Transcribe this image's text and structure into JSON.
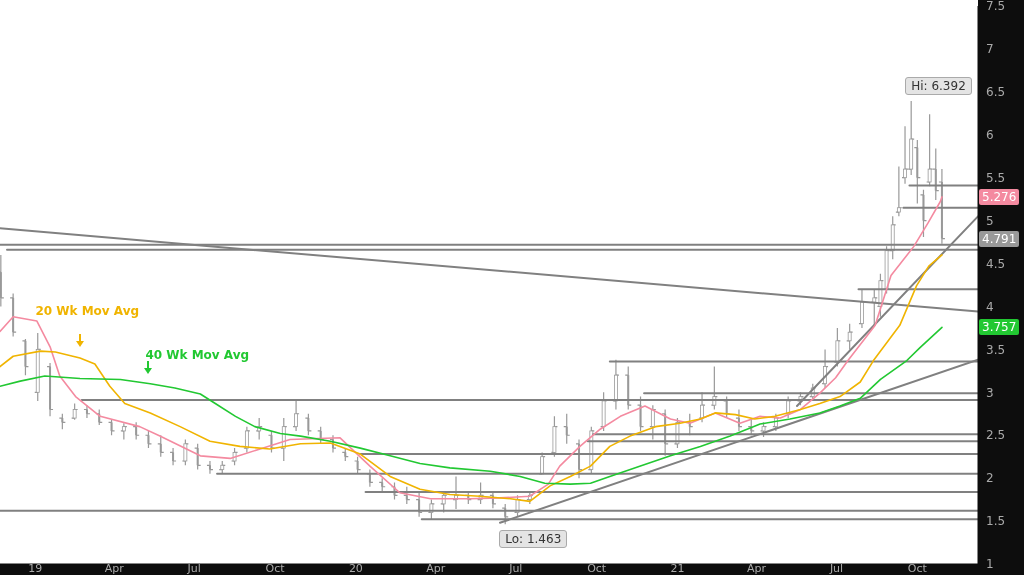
{
  "chart_data": {
    "type": "candlestick",
    "color": "#999999",
    "x": [
      "2018-11-23",
      "2018-12-07",
      "2018-12-21",
      "2019-01-04",
      "2019-01-18",
      "2019-02-01",
      "2019-02-15",
      "2019-03-01",
      "2019-03-15",
      "2019-03-29",
      "2019-04-12",
      "2019-04-26",
      "2019-05-10",
      "2019-05-24",
      "2019-06-07",
      "2019-06-21",
      "2019-07-05",
      "2019-07-19",
      "2019-08-02",
      "2019-08-16",
      "2019-08-30",
      "2019-09-13",
      "2019-09-27",
      "2019-10-11",
      "2019-10-25",
      "2019-11-08",
      "2019-11-22",
      "2019-12-06",
      "2019-12-20",
      "2020-01-03",
      "2020-01-17",
      "2020-01-31",
      "2020-02-14",
      "2020-02-28",
      "2020-03-13",
      "2020-03-27",
      "2020-04-10",
      "2020-04-24",
      "2020-05-08",
      "2020-05-22",
      "2020-06-05",
      "2020-06-19",
      "2020-07-03",
      "2020-07-17",
      "2020-07-31",
      "2020-08-14",
      "2020-08-28",
      "2020-09-11",
      "2020-09-25",
      "2020-10-09",
      "2020-10-23",
      "2020-11-06",
      "2020-11-20",
      "2020-12-04",
      "2020-12-18",
      "2021-01-01",
      "2021-01-15",
      "2021-01-29",
      "2021-02-12",
      "2021-02-26",
      "2021-03-12",
      "2021-03-26",
      "2021-04-09",
      "2021-04-23",
      "2021-05-07",
      "2021-05-21",
      "2021-06-04",
      "2021-06-18",
      "2021-07-02",
      "2021-07-16",
      "2021-07-30",
      "2021-08-13",
      "2021-08-20",
      "2021-08-27",
      "2021-09-03",
      "2021-09-10",
      "2021-09-17",
      "2021-09-24",
      "2021-10-01",
      "2021-10-08",
      "2021-10-15",
      "2021-10-22",
      "2021-10-29"
    ],
    "ohlc": [
      [
        4.4,
        4.6,
        4.0,
        4.1
      ],
      [
        4.1,
        4.15,
        3.65,
        3.7
      ],
      [
        3.6,
        3.62,
        3.2,
        3.3
      ],
      [
        3.0,
        3.69,
        2.9,
        3.5
      ],
      [
        3.3,
        3.34,
        2.72,
        2.8
      ],
      [
        2.7,
        2.75,
        2.57,
        2.65
      ],
      [
        2.7,
        2.87,
        2.68,
        2.8
      ],
      [
        2.8,
        2.85,
        2.7,
        2.75
      ],
      [
        2.75,
        2.8,
        2.62,
        2.65
      ],
      [
        2.65,
        2.68,
        2.5,
        2.55
      ],
      [
        2.55,
        2.64,
        2.45,
        2.6
      ],
      [
        2.6,
        2.65,
        2.45,
        2.5
      ],
      [
        2.5,
        2.55,
        2.35,
        2.4
      ],
      [
        2.4,
        2.5,
        2.25,
        2.3
      ],
      [
        2.3,
        2.35,
        2.15,
        2.2
      ],
      [
        2.2,
        2.45,
        2.15,
        2.4
      ],
      [
        2.35,
        2.4,
        2.1,
        2.15
      ],
      [
        2.15,
        2.2,
        2.05,
        2.1
      ],
      [
        2.1,
        2.2,
        2.05,
        2.15
      ],
      [
        2.2,
        2.35,
        2.15,
        2.3
      ],
      [
        2.35,
        2.6,
        2.3,
        2.55
      ],
      [
        2.55,
        2.7,
        2.45,
        2.6
      ],
      [
        2.5,
        2.55,
        2.3,
        2.35
      ],
      [
        2.35,
        2.7,
        2.2,
        2.6
      ],
      [
        2.6,
        2.9,
        2.55,
        2.75
      ],
      [
        2.7,
        2.75,
        2.5,
        2.55
      ],
      [
        2.55,
        2.6,
        2.4,
        2.45
      ],
      [
        2.45,
        2.5,
        2.3,
        2.35
      ],
      [
        2.3,
        2.35,
        2.2,
        2.25
      ],
      [
        2.2,
        2.25,
        2.05,
        2.1
      ],
      [
        2.05,
        2.1,
        1.9,
        1.95
      ],
      [
        1.95,
        2.0,
        1.85,
        1.9
      ],
      [
        1.9,
        1.95,
        1.75,
        1.8
      ],
      [
        1.8,
        1.9,
        1.7,
        1.75
      ],
      [
        1.75,
        1.85,
        1.55,
        1.6
      ],
      [
        1.6,
        1.75,
        1.52,
        1.7
      ],
      [
        1.7,
        1.85,
        1.6,
        1.8
      ],
      [
        1.75,
        2.02,
        1.64,
        1.8
      ],
      [
        1.8,
        1.85,
        1.7,
        1.75
      ],
      [
        1.75,
        1.95,
        1.7,
        1.8
      ],
      [
        1.8,
        1.85,
        1.65,
        1.7
      ],
      [
        1.65,
        1.7,
        1.463,
        1.55
      ],
      [
        1.6,
        1.8,
        1.55,
        1.75
      ],
      [
        1.75,
        1.85,
        1.7,
        1.8
      ],
      [
        2.05,
        2.3,
        2.05,
        2.25
      ],
      [
        2.3,
        2.72,
        2.25,
        2.6
      ],
      [
        2.6,
        2.75,
        2.4,
        2.5
      ],
      [
        2.4,
        2.45,
        2.0,
        2.1
      ],
      [
        2.1,
        2.6,
        2.05,
        2.55
      ],
      [
        2.6,
        3.0,
        2.55,
        2.9
      ],
      [
        2.9,
        3.38,
        2.8,
        3.2
      ],
      [
        3.2,
        3.3,
        2.8,
        2.85
      ],
      [
        2.85,
        2.95,
        2.55,
        2.6
      ],
      [
        2.6,
        2.85,
        2.45,
        2.8
      ],
      [
        2.75,
        2.8,
        2.26,
        2.4
      ],
      [
        2.4,
        2.7,
        2.35,
        2.65
      ],
      [
        2.65,
        2.75,
        2.5,
        2.6
      ],
      [
        2.7,
        3.0,
        2.65,
        2.85
      ],
      [
        2.85,
        3.3,
        2.8,
        2.95
      ],
      [
        2.9,
        2.95,
        2.7,
        2.75
      ],
      [
        2.7,
        2.8,
        2.55,
        2.6
      ],
      [
        2.6,
        2.7,
        2.5,
        2.55
      ],
      [
        2.55,
        2.65,
        2.48,
        2.6
      ],
      [
        2.6,
        2.75,
        2.55,
        2.7
      ],
      [
        2.75,
        2.95,
        2.7,
        2.9
      ],
      [
        2.9,
        3.0,
        2.85,
        2.95
      ],
      [
        2.95,
        3.1,
        2.9,
        3.05
      ],
      [
        3.1,
        3.5,
        3.05,
        3.3
      ],
      [
        3.35,
        3.75,
        3.3,
        3.6
      ],
      [
        3.6,
        3.8,
        3.5,
        3.7
      ],
      [
        3.8,
        4.2,
        3.75,
        4.05
      ],
      [
        4.05,
        4.2,
        3.77,
        4.1
      ],
      [
        4.0,
        4.38,
        3.88,
        4.3
      ],
      [
        4.2,
        4.7,
        4.15,
        4.65
      ],
      [
        4.65,
        5.05,
        4.55,
        4.95
      ],
      [
        5.1,
        5.63,
        5.05,
        5.15
      ],
      [
        5.5,
        6.1,
        5.43,
        5.6
      ],
      [
        5.6,
        6.392,
        5.53,
        5.95
      ],
      [
        5.85,
        5.94,
        5.2,
        5.5
      ],
      [
        5.3,
        5.36,
        4.81,
        5.0
      ],
      [
        5.45,
        6.24,
        5.4,
        5.6
      ],
      [
        5.6,
        5.84,
        5.24,
        5.35
      ],
      [
        5.45,
        5.6,
        4.73,
        4.791
      ]
    ],
    "series": [
      {
        "type": "line",
        "color": "#f48aa0",
        "x": [
          "2018-11-22",
          "2018-12-07",
          "2019-01-03",
          "2019-01-18",
          "2019-01-29",
          "2019-02-16",
          "2019-03-16",
          "2019-04-30",
          "2019-05-23",
          "2019-07-08",
          "2019-08-11",
          "2019-09-14",
          "2019-10-18",
          "2019-12-14",
          "2020-01-17",
          "2020-02-20",
          "2020-03-26",
          "2020-05-10",
          "2020-06-13",
          "2020-07-17",
          "2020-08-07",
          "2020-08-20",
          "2020-09-12",
          "2020-10-05",
          "2020-10-28",
          "2020-11-25",
          "2020-12-24",
          "2021-01-15",
          "2021-02-13",
          "2021-03-13",
          "2021-04-05",
          "2021-04-28",
          "2021-05-21",
          "2021-06-12",
          "2021-06-30",
          "2021-07-14",
          "2021-08-14",
          "2021-09-01",
          "2021-09-27",
          "2021-10-13",
          "2021-10-27",
          "2021-10-29"
        ],
        "values": [
          3.71,
          3.88,
          3.83,
          3.53,
          3.19,
          2.95,
          2.72,
          2.6,
          2.49,
          2.26,
          2.23,
          2.34,
          2.45,
          2.47,
          2.14,
          1.83,
          1.76,
          1.76,
          1.77,
          1.79,
          1.93,
          2.14,
          2.37,
          2.57,
          2.72,
          2.84,
          2.69,
          2.64,
          2.76,
          2.64,
          2.72,
          2.7,
          2.8,
          2.99,
          3.17,
          3.37,
          3.78,
          4.36,
          4.7,
          4.97,
          5.22,
          5.276
        ]
      },
      {
        "type": "line",
        "name": "20 Wk Mov Avg",
        "color": "#f0b400",
        "x": [
          "2018-11-22",
          "2018-12-07",
          "2019-01-07",
          "2019-01-24",
          "2019-02-21",
          "2019-03-10",
          "2019-03-27",
          "2019-04-13",
          "2019-05-12",
          "2019-06-15",
          "2019-07-19",
          "2019-08-22",
          "2019-09-25",
          "2019-10-30",
          "2019-12-03",
          "2020-01-06",
          "2020-02-09",
          "2020-03-14",
          "2020-04-17",
          "2020-05-21",
          "2020-06-25",
          "2020-07-17",
          "2020-08-09",
          "2020-09-01",
          "2020-09-24",
          "2020-10-16",
          "2020-11-08",
          "2020-12-07",
          "2021-01-04",
          "2021-01-27",
          "2021-02-13",
          "2021-03-08",
          "2021-03-30",
          "2021-04-22",
          "2021-05-21",
          "2021-06-12",
          "2021-07-05",
          "2021-07-28",
          "2021-08-12",
          "2021-09-11",
          "2021-09-30",
          "2021-10-14",
          "2021-10-29"
        ],
        "values": [
          3.3,
          3.42,
          3.48,
          3.47,
          3.4,
          3.33,
          3.07,
          2.87,
          2.76,
          2.6,
          2.43,
          2.37,
          2.34,
          2.4,
          2.41,
          2.28,
          2.02,
          1.87,
          1.81,
          1.79,
          1.76,
          1.73,
          1.91,
          2.02,
          2.14,
          2.37,
          2.49,
          2.6,
          2.64,
          2.69,
          2.76,
          2.74,
          2.69,
          2.72,
          2.8,
          2.87,
          2.95,
          3.12,
          3.37,
          3.78,
          4.24,
          4.47,
          4.6
        ]
      },
      {
        "type": "line",
        "name": "40 Wk Mov Avg",
        "color": "#22c832",
        "x": [
          "2018-11-22",
          "2018-12-15",
          "2019-01-12",
          "2019-02-21",
          "2019-04-08",
          "2019-05-12",
          "2019-06-09",
          "2019-07-08",
          "2019-07-25",
          "2019-08-17",
          "2019-09-08",
          "2019-10-07",
          "2019-10-30",
          "2019-12-03",
          "2020-01-06",
          "2020-02-09",
          "2020-03-14",
          "2020-04-17",
          "2020-06-02",
          "2020-07-06",
          "2020-08-03",
          "2020-09-01",
          "2020-09-24",
          "2020-10-16",
          "2020-11-19",
          "2020-12-24",
          "2021-01-27",
          "2021-03-02",
          "2021-04-05",
          "2021-05-09",
          "2021-06-12",
          "2021-07-05",
          "2021-07-28",
          "2021-08-20",
          "2021-09-19",
          "2021-10-04",
          "2021-10-29"
        ],
        "values": [
          3.07,
          3.13,
          3.19,
          3.16,
          3.15,
          3.1,
          3.05,
          2.98,
          2.87,
          2.72,
          2.6,
          2.52,
          2.49,
          2.43,
          2.35,
          2.26,
          2.17,
          2.12,
          2.08,
          2.02,
          1.94,
          1.93,
          1.94,
          2.02,
          2.14,
          2.26,
          2.37,
          2.49,
          2.63,
          2.69,
          2.76,
          2.84,
          2.93,
          3.15,
          3.37,
          3.52,
          3.757
        ]
      },
      {
        "type": "line",
        "color": "#808080",
        "x": [
          "2018-11-22",
          "2021-12-09"
        ],
        "values": [
          4.91,
          3.94
        ]
      },
      {
        "type": "line",
        "color": "#808080",
        "x": [
          "2018-11-22",
          "2021-12-09"
        ],
        "values": [
          4.72,
          4.72
        ]
      },
      {
        "type": "line",
        "color": "#808080",
        "x": [
          "2018-11-30",
          "2021-12-09"
        ],
        "values": [
          4.66,
          4.66
        ]
      },
      {
        "type": "line",
        "color": "#808080",
        "x": [
          "2021-07-26",
          "2021-12-09"
        ],
        "values": [
          4.2,
          4.2
        ]
      },
      {
        "type": "line",
        "color": "#808080",
        "x": [
          "2021-09-22",
          "2021-12-09"
        ],
        "values": [
          5.41,
          5.41
        ]
      },
      {
        "type": "line",
        "color": "#808080",
        "x": [
          "2021-09-15",
          "2021-12-09"
        ],
        "values": [
          5.15,
          5.15
        ]
      },
      {
        "type": "line",
        "color": "#808080",
        "x": [
          "2020-10-16",
          "2021-12-09"
        ],
        "values": [
          3.36,
          3.36
        ]
      },
      {
        "type": "line",
        "color": "#808080",
        "x": [
          "2020-11-24",
          "2021-12-09"
        ],
        "values": [
          2.99,
          2.99
        ]
      },
      {
        "type": "line",
        "color": "#808080",
        "x": [
          "2019-02-23",
          "2021-12-09"
        ],
        "values": [
          2.91,
          2.91
        ]
      },
      {
        "type": "line",
        "color": "#808080",
        "x": [
          "2020-09-27",
          "2021-12-09"
        ],
        "values": [
          2.51,
          2.51
        ]
      },
      {
        "type": "line",
        "color": "#808080",
        "x": [
          "2020-09-21",
          "2021-12-09"
        ],
        "values": [
          2.43,
          2.43
        ]
      },
      {
        "type": "line",
        "color": "#808080",
        "x": [
          "2020-01-06",
          "2021-12-09"
        ],
        "values": [
          2.28,
          2.28
        ]
      },
      {
        "type": "line",
        "color": "#808080",
        "x": [
          "2019-07-27",
          "2021-12-09"
        ],
        "values": [
          2.05,
          2.05
        ]
      },
      {
        "type": "line",
        "color": "#808080",
        "x": [
          "2020-01-12",
          "2021-12-09"
        ],
        "values": [
          1.84,
          1.84
        ]
      },
      {
        "type": "line",
        "color": "#808080",
        "x": [
          "2018-11-22",
          "2021-12-09"
        ],
        "values": [
          1.62,
          1.62
        ]
      },
      {
        "type": "line",
        "color": "#808080",
        "x": [
          "2020-03-16",
          "2021-12-09"
        ],
        "values": [
          1.52,
          1.52
        ]
      },
      {
        "type": "line",
        "color": "#808080",
        "x": [
          "2020-06-13",
          "2021-12-09"
        ],
        "values": [
          1.48,
          3.38
        ]
      },
      {
        "type": "line",
        "color": "#808080",
        "x": [
          "2021-05-17",
          "2021-12-09"
        ],
        "values": [
          2.84,
          5.05
        ]
      }
    ],
    "annotations": [
      {
        "text": "Hi: 6.392",
        "x": "2021-09-24",
        "y": 6.392
      },
      {
        "text": "Lo: 1.463",
        "x": "2020-06-19",
        "y": 1.463
      },
      {
        "text": "5.276",
        "y": 5.276
      },
      {
        "text": "4.791",
        "y": 4.791
      },
      {
        "text": "3.757",
        "y": 3.757
      }
    ],
    "xlim": [
      "2018-11-22",
      "2021-12-09"
    ],
    "xticks": [
      {
        "value": "2019-01-01",
        "label": "19"
      },
      {
        "value": "2019-04-01",
        "label": "Apr"
      },
      {
        "value": "2019-07-01",
        "label": "Jul"
      },
      {
        "value": "2019-10-01",
        "label": "Oct"
      },
      {
        "value": "2020-01-01",
        "label": "20"
      },
      {
        "value": "2020-04-01",
        "label": "Apr"
      },
      {
        "value": "2020-07-01",
        "label": "Jul"
      },
      {
        "value": "2020-10-01",
        "label": "Oct"
      },
      {
        "value": "2021-01-01",
        "label": "21"
      },
      {
        "value": "2021-04-01",
        "label": "Apr"
      },
      {
        "value": "2021-07-01",
        "label": "Jul"
      },
      {
        "value": "2021-10-01",
        "label": "Oct"
      }
    ],
    "ylim": [
      1,
      7.5
    ],
    "yticks": [
      1,
      1.5,
      2,
      2.5,
      3,
      3.5,
      4,
      4.5,
      5,
      5.5,
      6,
      6.5,
      7,
      7.5
    ]
  }
}
